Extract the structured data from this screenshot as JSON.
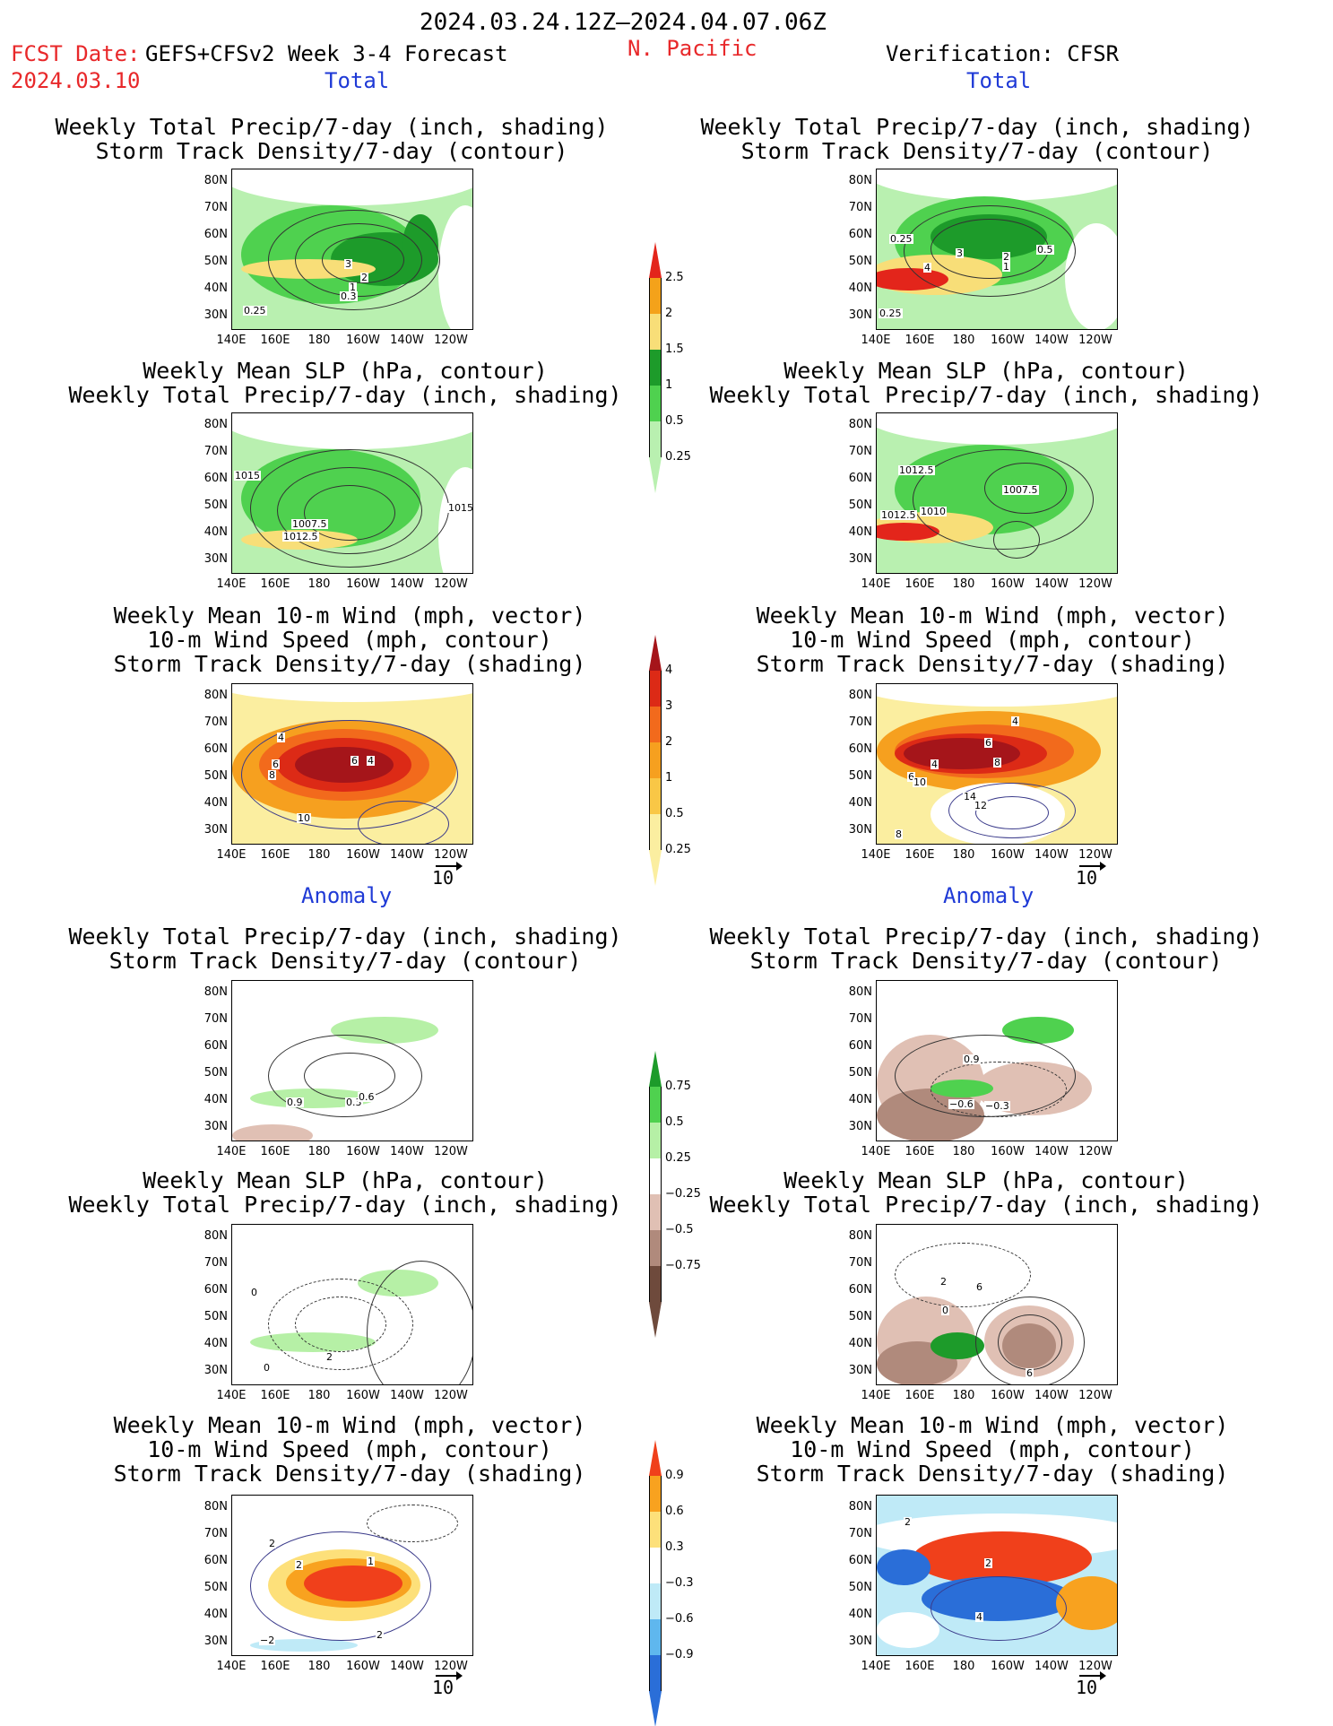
{
  "header": {
    "period": "2024.03.24.12Z–2024.04.07.06Z",
    "fcst_date_label": "FCST Date:",
    "forecast_desc": "GEFS+CFSv2 Week 3-4 Forecast",
    "fcst_date": "2024.03.10",
    "region": "N. Pacific",
    "verification": "Verification: CFSR"
  },
  "sections": {
    "total": "Total",
    "anomaly": "Anomaly"
  },
  "panel_titles": {
    "precip_storm": [
      "Weekly Total Precip/7-day (inch, shading)",
      "Storm Track Density/7-day (contour)"
    ],
    "slp_precip": [
      "Weekly Mean SLP (hPa, contour)",
      "Weekly Total Precip/7-day (inch, shading)"
    ],
    "wind_storm": [
      "Weekly Mean 10-m Wind (mph, vector)",
      "10-m Wind Speed (mph, contour)",
      "Storm Track Density/7-day (shading)"
    ]
  },
  "axes": {
    "lat": [
      "80N",
      "70N",
      "60N",
      "50N",
      "40N",
      "30N"
    ],
    "lon": [
      "140E",
      "160E",
      "180",
      "160W",
      "140W",
      "120W"
    ]
  },
  "vector_ref": "10",
  "colorbars": {
    "precip_total": {
      "ticks": [
        "2.5",
        "2",
        "1.5",
        "1",
        "0.5",
        "0.25"
      ],
      "colors": [
        "#e3251b",
        "#f4a21a",
        "#f8de78",
        "#1d9b2a",
        "#4fd14f",
        "#b9f0b0"
      ]
    },
    "storm_total": {
      "ticks": [
        "4",
        "3",
        "2",
        "1",
        "0.5",
        "0.25"
      ],
      "colors": [
        "#a5151a",
        "#dc2a16",
        "#f26a1c",
        "#f6a01f",
        "#f9c746",
        "#fbeea0"
      ]
    },
    "precip_anom": {
      "ticks": [
        "0.75",
        "0.5",
        "0.25",
        "−0.25",
        "−0.5",
        "−0.75"
      ],
      "colors": [
        "#1d9b2a",
        "#4fd14f",
        "#b6f0a6",
        "#ffffff",
        "#e0c0b4",
        "#b08a7c",
        "#6e4a3c"
      ]
    },
    "storm_anom": {
      "ticks": [
        "0.9",
        "0.6",
        "0.3",
        "−0.3",
        "−0.6",
        "−0.9"
      ],
      "colors": [
        "#f0401b",
        "#f8a21f",
        "#fde07a",
        "#ffffff",
        "#bfeaf7",
        "#5fb7ee",
        "#2a6ed8"
      ]
    }
  },
  "contour_labels": {
    "f_precip": [
      "3",
      "2",
      "1",
      "0.3",
      "0.25"
    ],
    "v_precip": [
      "0.25",
      "4",
      "3",
      "2",
      "1",
      "0.5",
      "0.25"
    ],
    "f_slp": [
      "1015",
      "1007.5",
      "1012.5",
      "1015"
    ],
    "v_slp": [
      "1012.5",
      "1007.5",
      "1012.5",
      "1010"
    ],
    "f_wind": [
      "4",
      "6",
      "8",
      "6",
      "4",
      "10"
    ],
    "v_wind": [
      "4",
      "6",
      "4",
      "6",
      "8",
      "10",
      "14",
      "12",
      "8"
    ],
    "fa_precip": [
      "0.9",
      "0.3",
      "0.6"
    ],
    "va_precip": [
      "0.9",
      "−0.6",
      "−0.3"
    ],
    "fa_slp": [
      "0",
      "2",
      "0"
    ],
    "va_slp": [
      "2",
      "6",
      "0",
      "6"
    ],
    "fa_wind": [
      "2",
      "2",
      "1",
      "−2",
      "2"
    ],
    "va_wind": [
      "2",
      "2",
      "4"
    ]
  }
}
